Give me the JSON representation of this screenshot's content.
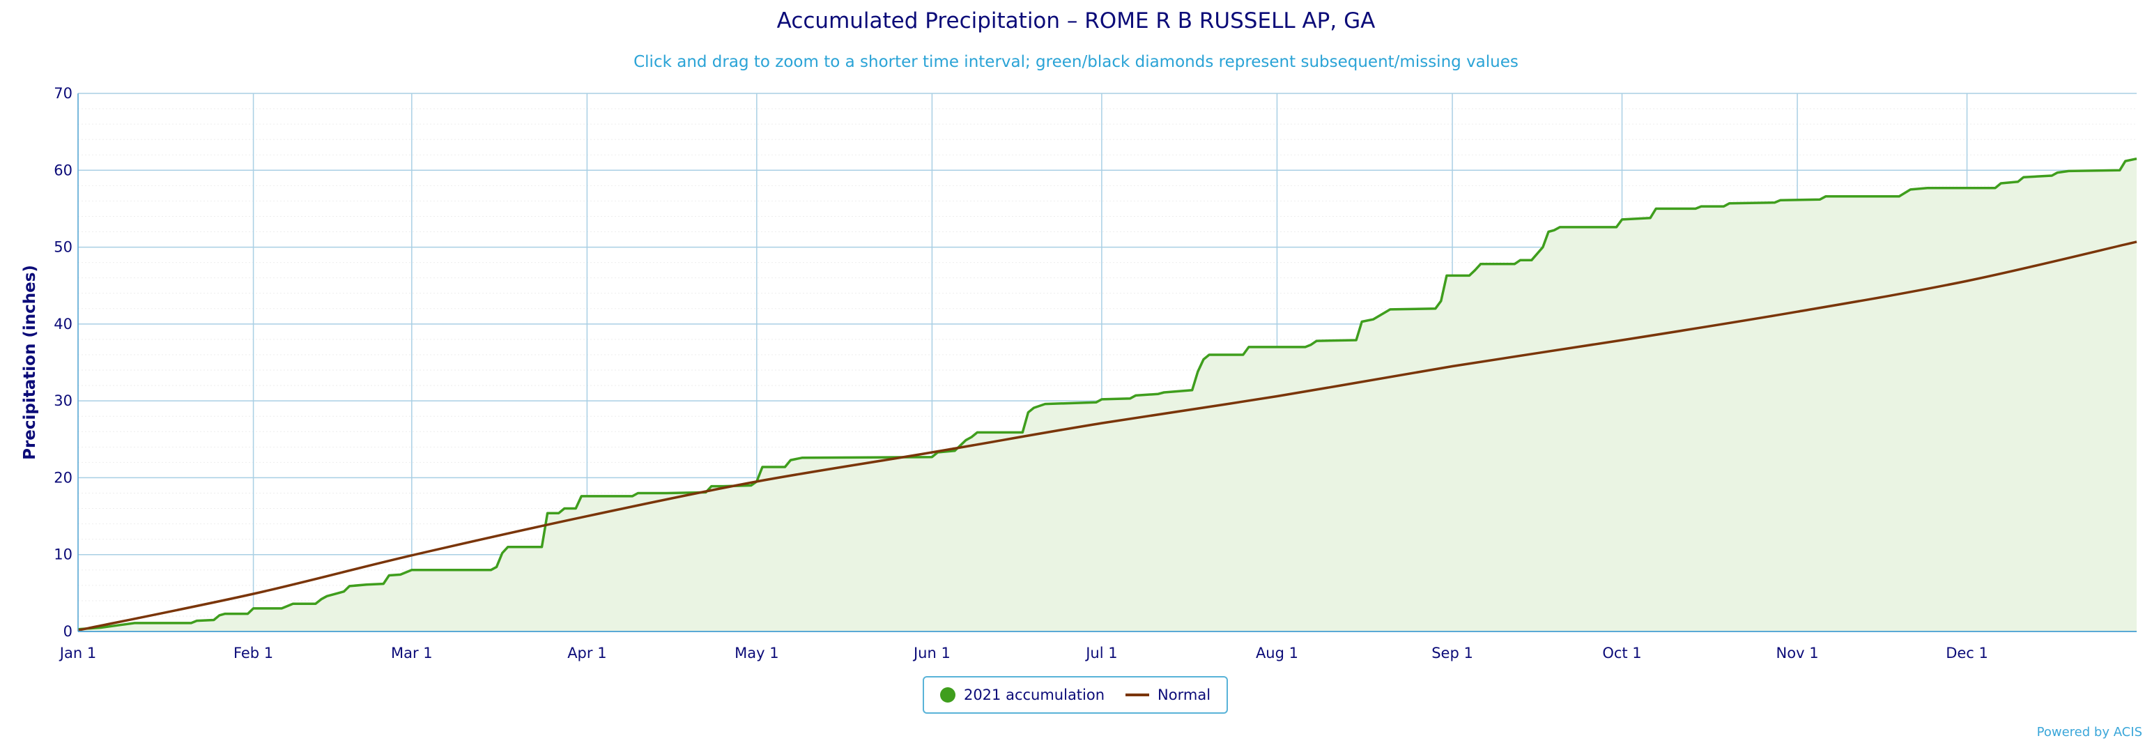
{
  "chart_data": {
    "type": "line",
    "title": "Accumulated Precipitation – ROME R B RUSSELL AP, GA",
    "subtitle": "Click and drag to zoom to a shorter time interval; green/black diamonds represent subsequent/missing values",
    "ylabel": "Precipitation (inches)",
    "xlabel": "",
    "ylim": [
      0,
      70
    ],
    "xlim": [
      "2021-01-01",
      "2021-12-31"
    ],
    "y_ticks": [
      "0",
      "10",
      "20",
      "30",
      "40",
      "50",
      "60",
      "70"
    ],
    "x_ticks": [
      "Jan 1",
      "Feb 1",
      "Mar 1",
      "Apr 1",
      "May 1",
      "Jun 1",
      "Jul 1",
      "Aug 1",
      "Sep 1",
      "Oct 1",
      "Nov 1",
      "Dec 1"
    ],
    "x_tick_dates": [
      "2021-01-01",
      "2021-02-01",
      "2021-03-01",
      "2021-04-01",
      "2021-05-01",
      "2021-06-01",
      "2021-07-01",
      "2021-08-01",
      "2021-09-01",
      "2021-10-01",
      "2021-11-01",
      "2021-12-01"
    ],
    "grid": true,
    "legend_position": "bottom",
    "series": [
      {
        "name": "2021 accumulation",
        "color": "#3f9e1d",
        "fill": "#eaf4e3",
        "points": [
          [
            "2021-01-01",
            0.3
          ],
          [
            "2021-01-05",
            0.5
          ],
          [
            "2021-01-08",
            0.8
          ],
          [
            "2021-01-11",
            1.1
          ],
          [
            "2021-01-21",
            1.1
          ],
          [
            "2021-01-22",
            1.4
          ],
          [
            "2021-01-25",
            1.5
          ],
          [
            "2021-01-26",
            2.1
          ],
          [
            "2021-01-27",
            2.3
          ],
          [
            "2021-01-31",
            2.3
          ],
          [
            "2021-02-01",
            3.0
          ],
          [
            "2021-02-06",
            3.0
          ],
          [
            "2021-02-08",
            3.6
          ],
          [
            "2021-02-12",
            3.6
          ],
          [
            "2021-02-13",
            4.2
          ],
          [
            "2021-02-14",
            4.6
          ],
          [
            "2021-02-16",
            5.0
          ],
          [
            "2021-02-17",
            5.2
          ],
          [
            "2021-02-18",
            5.9
          ],
          [
            "2021-02-21",
            6.1
          ],
          [
            "2021-02-24",
            6.2
          ],
          [
            "2021-02-25",
            7.3
          ],
          [
            "2021-02-27",
            7.4
          ],
          [
            "2021-03-01",
            8.0
          ],
          [
            "2021-03-15",
            8.0
          ],
          [
            "2021-03-16",
            8.4
          ],
          [
            "2021-03-17",
            10.2
          ],
          [
            "2021-03-18",
            11.0
          ],
          [
            "2021-03-24",
            11.0
          ],
          [
            "2021-03-25",
            15.4
          ],
          [
            "2021-03-27",
            15.4
          ],
          [
            "2021-03-28",
            16.0
          ],
          [
            "2021-03-30",
            16.0
          ],
          [
            "2021-03-31",
            17.6
          ],
          [
            "2021-04-09",
            17.6
          ],
          [
            "2021-04-10",
            18.0
          ],
          [
            "2021-04-15",
            18.0
          ],
          [
            "2021-04-22",
            18.1
          ],
          [
            "2021-04-23",
            18.9
          ],
          [
            "2021-04-25",
            18.9
          ],
          [
            "2021-04-30",
            19.0
          ],
          [
            "2021-05-01",
            19.5
          ],
          [
            "2021-05-02",
            21.4
          ],
          [
            "2021-05-06",
            21.4
          ],
          [
            "2021-05-07",
            22.3
          ],
          [
            "2021-05-09",
            22.6
          ],
          [
            "2021-06-01",
            22.7
          ],
          [
            "2021-06-02",
            23.3
          ],
          [
            "2021-06-05",
            23.5
          ],
          [
            "2021-06-07",
            24.9
          ],
          [
            "2021-06-08",
            25.3
          ],
          [
            "2021-06-09",
            25.9
          ],
          [
            "2021-06-17",
            25.9
          ],
          [
            "2021-06-18",
            28.5
          ],
          [
            "2021-06-19",
            29.1
          ],
          [
            "2021-06-21",
            29.6
          ],
          [
            "2021-06-30",
            29.8
          ],
          [
            "2021-07-01",
            30.2
          ],
          [
            "2021-07-06",
            30.3
          ],
          [
            "2021-07-07",
            30.7
          ],
          [
            "2021-07-11",
            30.9
          ],
          [
            "2021-07-12",
            31.1
          ],
          [
            "2021-07-17",
            31.4
          ],
          [
            "2021-07-18",
            33.8
          ],
          [
            "2021-07-19",
            35.4
          ],
          [
            "2021-07-20",
            36.0
          ],
          [
            "2021-07-26",
            36.0
          ],
          [
            "2021-07-27",
            37.0
          ],
          [
            "2021-08-06",
            37.0
          ],
          [
            "2021-08-07",
            37.3
          ],
          [
            "2021-08-08",
            37.8
          ],
          [
            "2021-08-15",
            37.9
          ],
          [
            "2021-08-16",
            40.3
          ],
          [
            "2021-08-18",
            40.6
          ],
          [
            "2021-08-21",
            41.9
          ],
          [
            "2021-08-29",
            42.0
          ],
          [
            "2021-08-30",
            43.0
          ],
          [
            "2021-08-31",
            46.3
          ],
          [
            "2021-09-04",
            46.3
          ],
          [
            "2021-09-05",
            47.0
          ],
          [
            "2021-09-06",
            47.8
          ],
          [
            "2021-09-12",
            47.8
          ],
          [
            "2021-09-13",
            48.3
          ],
          [
            "2021-09-15",
            48.3
          ],
          [
            "2021-09-17",
            50.0
          ],
          [
            "2021-09-18",
            52.0
          ],
          [
            "2021-09-19",
            52.2
          ],
          [
            "2021-09-20",
            52.6
          ],
          [
            "2021-09-30",
            52.6
          ],
          [
            "2021-10-01",
            53.6
          ],
          [
            "2021-10-06",
            53.8
          ],
          [
            "2021-10-07",
            55.0
          ],
          [
            "2021-10-14",
            55.0
          ],
          [
            "2021-10-15",
            55.3
          ],
          [
            "2021-10-19",
            55.3
          ],
          [
            "2021-10-20",
            55.7
          ],
          [
            "2021-10-28",
            55.8
          ],
          [
            "2021-10-29",
            56.1
          ],
          [
            "2021-11-05",
            56.2
          ],
          [
            "2021-11-06",
            56.6
          ],
          [
            "2021-11-19",
            56.6
          ],
          [
            "2021-11-21",
            57.5
          ],
          [
            "2021-11-24",
            57.7
          ],
          [
            "2021-12-06",
            57.7
          ],
          [
            "2021-12-07",
            58.3
          ],
          [
            "2021-12-10",
            58.5
          ],
          [
            "2021-12-11",
            59.1
          ],
          [
            "2021-12-16",
            59.3
          ],
          [
            "2021-12-17",
            59.7
          ],
          [
            "2021-12-19",
            59.9
          ],
          [
            "2021-12-28",
            60.0
          ],
          [
            "2021-12-29",
            61.2
          ],
          [
            "2021-12-31",
            61.5
          ]
        ]
      },
      {
        "name": "Normal",
        "color": "#7a3509",
        "points": [
          [
            "2021-01-01",
            0.15
          ],
          [
            "2021-02-01",
            4.9
          ],
          [
            "2021-03-01",
            9.9
          ],
          [
            "2021-04-01",
            15.0
          ],
          [
            "2021-05-01",
            19.5
          ],
          [
            "2021-06-01",
            23.3
          ],
          [
            "2021-07-01",
            27.1
          ],
          [
            "2021-08-01",
            30.6
          ],
          [
            "2021-09-01",
            34.5
          ],
          [
            "2021-10-01",
            37.9
          ],
          [
            "2021-11-01",
            41.6
          ],
          [
            "2021-12-01",
            45.6
          ],
          [
            "2021-12-31",
            50.7
          ]
        ]
      }
    ]
  },
  "legend": {
    "items": [
      {
        "label": "2021 accumulation",
        "color": "#3f9e1d",
        "symbol": "circle"
      },
      {
        "label": "Normal",
        "color": "#7a3509",
        "symbol": "line"
      }
    ]
  },
  "credit": "Powered by ACIS"
}
